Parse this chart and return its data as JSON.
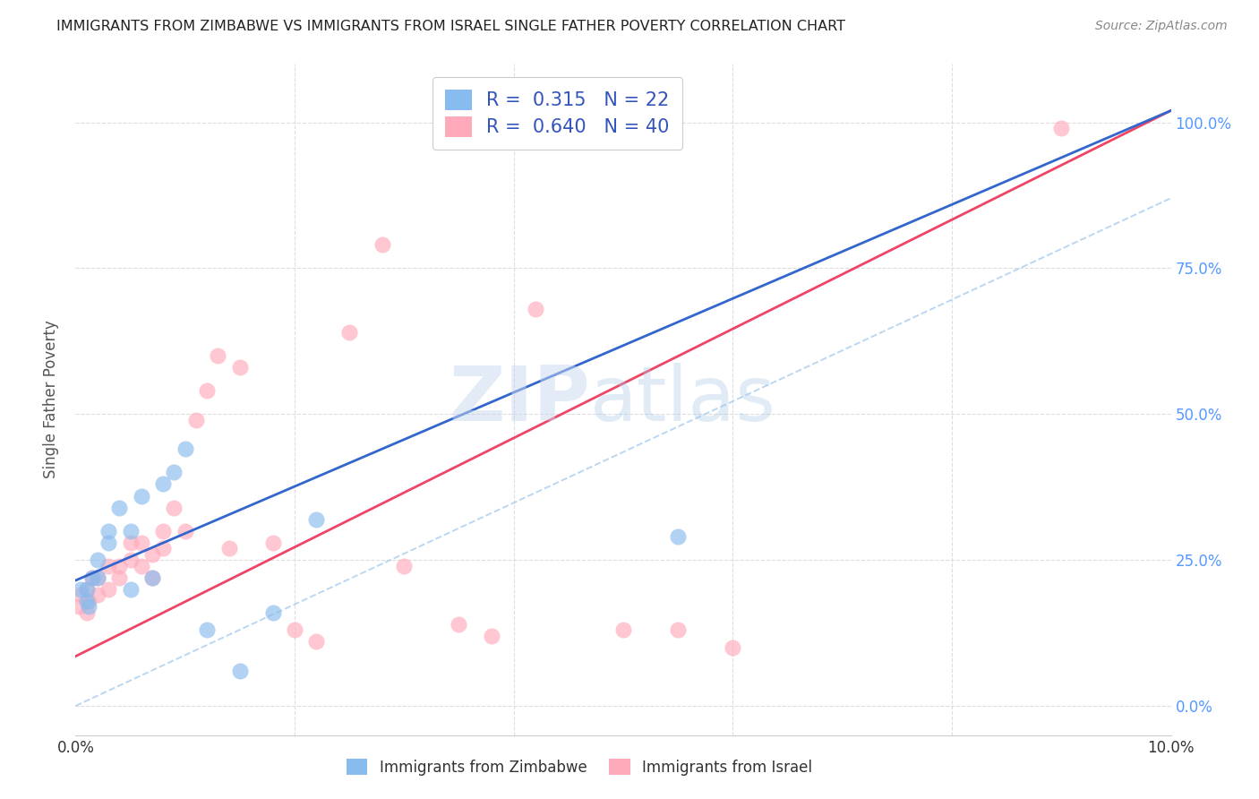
{
  "title": "IMMIGRANTS FROM ZIMBABWE VS IMMIGRANTS FROM ISRAEL SINGLE FATHER POVERTY CORRELATION CHART",
  "source": "Source: ZipAtlas.com",
  "ylabel": "Single Father Poverty",
  "ylabel_right_values": [
    0.0,
    0.25,
    0.5,
    0.75,
    1.0
  ],
  "ylabel_right_labels": [
    "0.0%",
    "25.0%",
    "50.0%",
    "75.0%",
    "100.0%"
  ],
  "xlim": [
    0.0,
    0.1
  ],
  "ylim": [
    -0.05,
    1.1
  ],
  "blue_R": "0.315",
  "blue_N": "22",
  "pink_R": "0.640",
  "pink_N": "40",
  "blue_color": "#88bbee",
  "pink_color": "#ffaabb",
  "blue_line_color": "#3366cc",
  "pink_line_color": "#ee4466",
  "blue_label": "Immigrants from Zimbabwe",
  "pink_label": "Immigrants from Israel",
  "blue_line_x0": 0.0,
  "blue_line_y0": 0.215,
  "blue_line_x1": 0.1,
  "blue_line_y1": 1.02,
  "pink_line_x0": 0.0,
  "pink_line_y0": 0.085,
  "pink_line_x1": 0.1,
  "pink_line_y1": 1.02,
  "dash_line_x0": 0.0,
  "dash_line_y0": 0.0,
  "dash_line_x1": 0.1,
  "dash_line_y1": 0.87,
  "blue_scatter_x": [
    0.0005,
    0.001,
    0.001,
    0.0012,
    0.0015,
    0.002,
    0.002,
    0.003,
    0.003,
    0.004,
    0.005,
    0.005,
    0.006,
    0.007,
    0.008,
    0.009,
    0.01,
    0.012,
    0.015,
    0.018,
    0.022,
    0.055
  ],
  "blue_scatter_y": [
    0.2,
    0.2,
    0.18,
    0.17,
    0.22,
    0.22,
    0.25,
    0.3,
    0.28,
    0.34,
    0.3,
    0.2,
    0.36,
    0.22,
    0.38,
    0.4,
    0.44,
    0.13,
    0.06,
    0.16,
    0.32,
    0.29
  ],
  "pink_scatter_x": [
    0.0003,
    0.0005,
    0.001,
    0.001,
    0.0012,
    0.0015,
    0.002,
    0.002,
    0.003,
    0.003,
    0.004,
    0.004,
    0.005,
    0.005,
    0.006,
    0.006,
    0.007,
    0.007,
    0.008,
    0.008,
    0.009,
    0.01,
    0.011,
    0.012,
    0.013,
    0.014,
    0.015,
    0.018,
    0.02,
    0.022,
    0.025,
    0.028,
    0.03,
    0.035,
    0.038,
    0.042,
    0.05,
    0.055,
    0.06,
    0.09
  ],
  "pink_scatter_y": [
    0.17,
    0.19,
    0.2,
    0.16,
    0.18,
    0.22,
    0.22,
    0.19,
    0.24,
    0.2,
    0.24,
    0.22,
    0.28,
    0.25,
    0.28,
    0.24,
    0.22,
    0.26,
    0.3,
    0.27,
    0.34,
    0.3,
    0.49,
    0.54,
    0.6,
    0.27,
    0.58,
    0.28,
    0.13,
    0.11,
    0.64,
    0.79,
    0.24,
    0.14,
    0.12,
    0.68,
    0.13,
    0.13,
    0.1,
    0.99
  ],
  "watermark_zip": "ZIP",
  "watermark_atlas": "atlas",
  "background_color": "#ffffff",
  "grid_color": "#dddddd"
}
